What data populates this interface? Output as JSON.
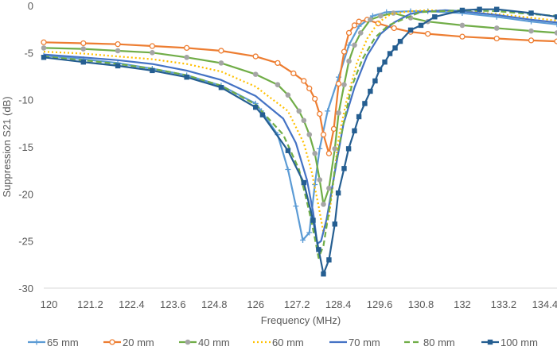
{
  "chart_data": {
    "type": "line",
    "title": "",
    "xlabel": "Frequency (MHz)",
    "ylabel": "Suppression S21 (dB)",
    "xlim": [
      119.85,
      134.75
    ],
    "ylim": [
      -30,
      0
    ],
    "x_ticks": [
      "120",
      "121.2",
      "122.4",
      "123.6",
      "124.8",
      "126",
      "127.2",
      "128.4",
      "129.6",
      "130.8",
      "132",
      "133.2",
      "134.4"
    ],
    "y_ticks": [
      "0",
      "-5",
      "-10",
      "-15",
      "-20",
      "-25",
      "-30"
    ],
    "grid": false,
    "legend_position": "bottom",
    "series": [
      {
        "name": "65 mm",
        "color": "#5b9bd5",
        "dash": "solid",
        "marker": "plus",
        "points": [
          [
            119.85,
            -5.3
          ],
          [
            121,
            -5.7
          ],
          [
            122,
            -6.1
          ],
          [
            123,
            -6.7
          ],
          [
            124,
            -7.4
          ],
          [
            125,
            -8.5
          ],
          [
            126,
            -10.4
          ],
          [
            126.17,
            -11.2
          ],
          [
            126.64,
            -13.7
          ],
          [
            126.94,
            -17.4
          ],
          [
            127.17,
            -21.3
          ],
          [
            127.37,
            -24.9
          ],
          [
            127.56,
            -24.1
          ],
          [
            127.72,
            -19.0
          ],
          [
            127.86,
            -15.2
          ],
          [
            128.09,
            -11.2
          ],
          [
            128.41,
            -7.6
          ],
          [
            128.71,
            -4.2
          ],
          [
            129.0,
            -2.2
          ],
          [
            129.4,
            -1.1
          ],
          [
            129.8,
            -0.7
          ],
          [
            130.5,
            -0.6
          ],
          [
            131,
            -0.6
          ],
          [
            132,
            -0.8
          ],
          [
            133,
            -1.2
          ],
          [
            134,
            -1.7
          ],
          [
            134.75,
            -2.0
          ]
        ]
      },
      {
        "name": "20 mm",
        "color": "#ed7d31",
        "dash": "solid",
        "marker": "circle-open",
        "points": [
          [
            119.85,
            -3.9
          ],
          [
            121,
            -4.0
          ],
          [
            122,
            -4.1
          ],
          [
            123,
            -4.3
          ],
          [
            124,
            -4.5
          ],
          [
            125,
            -4.8
          ],
          [
            126,
            -5.4
          ],
          [
            126.64,
            -6.1
          ],
          [
            127.1,
            -7.2
          ],
          [
            127.4,
            -8.0
          ],
          [
            127.56,
            -8.8
          ],
          [
            127.72,
            -9.9
          ],
          [
            127.86,
            -11.5
          ],
          [
            127.97,
            -13.7
          ],
          [
            128.13,
            -15.7
          ],
          [
            128.27,
            -13.1
          ],
          [
            128.41,
            -8.3
          ],
          [
            128.57,
            -4.9
          ],
          [
            128.71,
            -2.9
          ],
          [
            128.87,
            -2.1
          ],
          [
            129.0,
            -1.7
          ],
          [
            129.24,
            -1.5
          ],
          [
            129.56,
            -1.9
          ],
          [
            130.02,
            -2.4
          ],
          [
            130.5,
            -2.8
          ],
          [
            131,
            -3.0
          ],
          [
            132,
            -3.3
          ],
          [
            133,
            -3.5
          ],
          [
            134,
            -3.7
          ],
          [
            134.75,
            -3.8
          ]
        ]
      },
      {
        "name": "40 mm",
        "color": "#70ad47",
        "marker_color": "#a5a5a5",
        "dash": "solid",
        "marker": "circle",
        "points": [
          [
            119.85,
            -4.5
          ],
          [
            121,
            -4.6
          ],
          [
            122,
            -4.8
          ],
          [
            123,
            -5.0
          ],
          [
            124,
            -5.5
          ],
          [
            125,
            -6.1
          ],
          [
            126,
            -7.3
          ],
          [
            126.64,
            -8.4
          ],
          [
            126.94,
            -9.5
          ],
          [
            127.26,
            -11.2
          ],
          [
            127.4,
            -12.2
          ],
          [
            127.56,
            -13.7
          ],
          [
            127.72,
            -15.7
          ],
          [
            127.86,
            -18.5
          ],
          [
            127.97,
            -21.1
          ],
          [
            128.13,
            -19.4
          ],
          [
            128.3,
            -15.2
          ],
          [
            128.41,
            -11.4
          ],
          [
            128.57,
            -8.4
          ],
          [
            128.71,
            -5.9
          ],
          [
            128.87,
            -4.2
          ],
          [
            129.05,
            -2.9
          ],
          [
            129.33,
            -1.5
          ],
          [
            129.63,
            -1.1
          ],
          [
            130.0,
            -0.8
          ],
          [
            130.5,
            -1.3
          ],
          [
            131,
            -1.7
          ],
          [
            132,
            -2.1
          ],
          [
            133,
            -2.4
          ],
          [
            134,
            -2.7
          ],
          [
            134.75,
            -2.9
          ]
        ]
      },
      {
        "name": "60 mm",
        "color": "#ffc000",
        "dash": "dotted",
        "marker": "none",
        "points": [
          [
            119.85,
            -4.9
          ],
          [
            121,
            -5.1
          ],
          [
            122,
            -5.4
          ],
          [
            123,
            -5.7
          ],
          [
            124,
            -6.2
          ],
          [
            125,
            -7.0
          ],
          [
            126,
            -8.6
          ],
          [
            126.94,
            -11.2
          ],
          [
            127.4,
            -14.6
          ],
          [
            127.63,
            -17.7
          ],
          [
            127.83,
            -21.3
          ],
          [
            127.97,
            -24.1
          ],
          [
            128.13,
            -22.4
          ],
          [
            128.25,
            -19.0
          ],
          [
            128.41,
            -14.0
          ],
          [
            128.64,
            -10.1
          ],
          [
            128.94,
            -6.1
          ],
          [
            129.24,
            -3.5
          ],
          [
            129.56,
            -1.8
          ],
          [
            129.93,
            -0.9
          ],
          [
            130.5,
            -0.6
          ],
          [
            131,
            -0.5
          ],
          [
            132,
            -0.6
          ],
          [
            133,
            -0.9
          ],
          [
            134,
            -1.3
          ],
          [
            134.75,
            -1.6
          ]
        ]
      },
      {
        "name": "70 mm",
        "color": "#4472c4",
        "dash": "solid",
        "marker": "none",
        "points": [
          [
            119.85,
            -5.2
          ],
          [
            121,
            -5.5
          ],
          [
            122,
            -5.8
          ],
          [
            123,
            -6.2
          ],
          [
            124,
            -6.9
          ],
          [
            125,
            -7.9
          ],
          [
            126,
            -9.6
          ],
          [
            126.8,
            -12.0
          ],
          [
            127.17,
            -14.6
          ],
          [
            127.49,
            -18.5
          ],
          [
            127.67,
            -21.9
          ],
          [
            127.79,
            -25.3
          ],
          [
            127.9,
            -25.0
          ],
          [
            128.06,
            -22.7
          ],
          [
            128.3,
            -17.7
          ],
          [
            128.55,
            -12.6
          ],
          [
            128.87,
            -8.7
          ],
          [
            129.24,
            -5.3
          ],
          [
            129.63,
            -3.0
          ],
          [
            130.02,
            -1.8
          ],
          [
            130.48,
            -0.9
          ],
          [
            130.78,
            -0.7
          ],
          [
            131.5,
            -0.5
          ],
          [
            132,
            -0.6
          ],
          [
            133,
            -1.0
          ],
          [
            134,
            -1.5
          ],
          [
            134.75,
            -1.8
          ]
        ]
      },
      {
        "name": "80 mm",
        "color": "#70ad47",
        "dash": "dashed",
        "marker": "none",
        "points": [
          [
            119.85,
            -5.4
          ],
          [
            121,
            -5.8
          ],
          [
            122,
            -6.2
          ],
          [
            123,
            -6.7
          ],
          [
            124,
            -7.4
          ],
          [
            125,
            -8.5
          ],
          [
            126,
            -10.5
          ],
          [
            126.8,
            -13.7
          ],
          [
            127.26,
            -17.4
          ],
          [
            127.56,
            -21.9
          ],
          [
            127.72,
            -24.7
          ],
          [
            127.83,
            -26.8
          ],
          [
            127.97,
            -25.5
          ],
          [
            128.13,
            -21.9
          ],
          [
            128.32,
            -16.8
          ],
          [
            128.55,
            -12.6
          ],
          [
            128.78,
            -8.7
          ],
          [
            129.1,
            -5.7
          ],
          [
            129.47,
            -3.4
          ],
          [
            129.86,
            -2.1
          ],
          [
            130.32,
            -1.4
          ],
          [
            130.78,
            -0.7
          ],
          [
            132,
            -0.5
          ],
          [
            133,
            -0.6
          ],
          [
            134,
            -0.9
          ],
          [
            134.75,
            -1.1
          ]
        ]
      },
      {
        "name": "100 mm",
        "color": "#255e91",
        "dash": "solid",
        "marker": "square",
        "points": [
          [
            119.85,
            -5.5
          ],
          [
            121,
            -6.0
          ],
          [
            122,
            -6.4
          ],
          [
            123,
            -6.9
          ],
          [
            124,
            -7.6
          ],
          [
            125,
            -8.7
          ],
          [
            126,
            -10.8
          ],
          [
            126.2,
            -11.6
          ],
          [
            126.94,
            -15.4
          ],
          [
            127.4,
            -18.8
          ],
          [
            127.67,
            -22.8
          ],
          [
            127.83,
            -25.9
          ],
          [
            127.97,
            -28.5
          ],
          [
            128.13,
            -27.0
          ],
          [
            128.3,
            -23.2
          ],
          [
            128.4,
            -19.9
          ],
          [
            128.57,
            -17.3
          ],
          [
            128.7,
            -15.2
          ],
          [
            128.87,
            -13.3
          ],
          [
            129.0,
            -11.8
          ],
          [
            129.17,
            -10.4
          ],
          [
            129.33,
            -9.1
          ],
          [
            129.47,
            -8.0
          ],
          [
            129.6,
            -6.8
          ],
          [
            129.75,
            -6.0
          ],
          [
            129.9,
            -5.1
          ],
          [
            130.05,
            -4.5
          ],
          [
            130.2,
            -3.8
          ],
          [
            130.5,
            -2.6
          ],
          [
            130.8,
            -2.1
          ],
          [
            131.2,
            -1.2
          ],
          [
            132,
            -0.5
          ],
          [
            132.5,
            -0.4
          ],
          [
            133,
            -0.4
          ],
          [
            134,
            -0.8
          ],
          [
            134.75,
            -1.2
          ]
        ]
      }
    ]
  }
}
